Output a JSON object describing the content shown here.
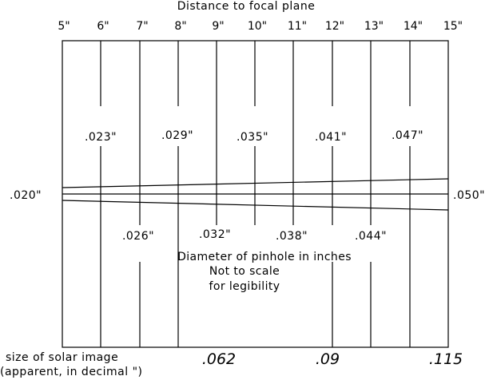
{
  "title": "Distance to focal plane",
  "distance_ticks": [
    "5\"",
    "6\"",
    "7\"",
    "8\"",
    "9\"",
    "10\"",
    "11\"",
    "12\"",
    "13\"",
    "14\"",
    "15\""
  ],
  "upper_diameters": [
    ".023\"",
    ".029\"",
    ".035\"",
    ".041\"",
    ".047\""
  ],
  "lower_diameters": [
    ".026\"",
    ".032\"",
    ".038\"",
    ".044\""
  ],
  "left_end_label": ".020\"",
  "right_end_label": ".050\"",
  "caption": {
    "line1": "Diameter of pinhole in inches",
    "line2": "Not to scale",
    "line3": "for legibility"
  },
  "solar_image": {
    "label_line1": "size of solar image",
    "label_line2": "(apparent, in decimal \")",
    "values": [
      ".062",
      ".09",
      ".115"
    ]
  }
}
